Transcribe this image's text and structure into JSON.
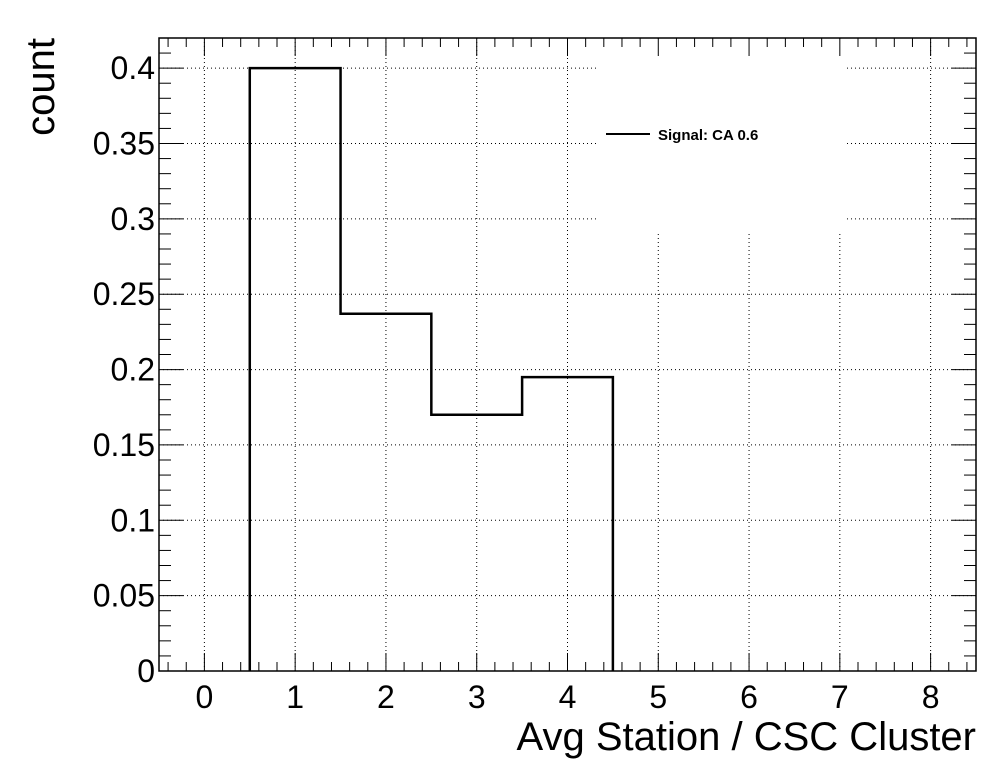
{
  "chart_data": {
    "type": "histogram",
    "title": "",
    "xlabel": "Avg Station / CSC Cluster",
    "ylabel": "count",
    "xlim": [
      -0.5,
      8.5
    ],
    "ylim": [
      0,
      0.42
    ],
    "grid": true,
    "x_ticks": [
      "0",
      "1",
      "2",
      "3",
      "4",
      "5",
      "6",
      "7",
      "8"
    ],
    "y_ticks": [
      "0",
      "0.05",
      "0.1",
      "0.15",
      "0.2",
      "0.25",
      "0.3",
      "0.35",
      "0.4"
    ],
    "bin_edges": [
      0.5,
      1.5,
      2.5,
      3.5,
      4.5
    ],
    "series": [
      {
        "name": "Signal: CA 0.6",
        "values": [
          0.4,
          0.237,
          0.17,
          0.195
        ],
        "color": "#000000"
      }
    ],
    "legend": {
      "placement": "top-right"
    }
  }
}
